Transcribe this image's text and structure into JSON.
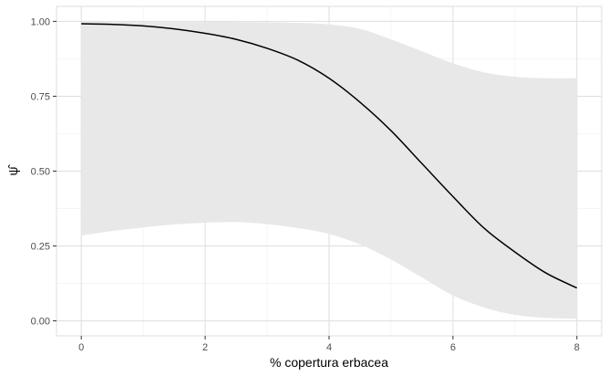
{
  "chart_data": {
    "type": "line",
    "xlabel": "% copertura erbacea",
    "ylabel": "ψ̂",
    "xlim": [
      -0.4,
      8.4
    ],
    "ylim": [
      -0.05,
      1.05
    ],
    "xticks": [
      0,
      2,
      4,
      6,
      8
    ],
    "xtick_labels": [
      "0",
      "2",
      "4",
      "6",
      "8"
    ],
    "yticks": [
      0,
      0.25,
      0.5,
      0.75,
      1.0
    ],
    "ytick_labels": [
      "0.00",
      "0.25",
      "0.50",
      "0.75",
      "1.00"
    ],
    "grid": true,
    "legend": "none",
    "colors": {
      "line": "#000000",
      "ribbon": "#e8e8e8",
      "grid_major": "#dedede",
      "grid_minor": "#efefef",
      "panel_border": "#dedede"
    },
    "series": [
      {
        "x": [
          0,
          0.5,
          1,
          1.5,
          2,
          2.5,
          3,
          3.5,
          4,
          4.5,
          5,
          5.5,
          6,
          6.5,
          7,
          7.5,
          8
        ],
        "y": [
          0.992,
          0.99,
          0.985,
          0.975,
          0.96,
          0.94,
          0.91,
          0.87,
          0.81,
          0.73,
          0.635,
          0.525,
          0.415,
          0.31,
          0.23,
          0.16,
          0.11
        ],
        "lower": [
          0.285,
          0.3,
          0.312,
          0.322,
          0.328,
          0.33,
          0.323,
          0.31,
          0.29,
          0.255,
          0.205,
          0.145,
          0.085,
          0.045,
          0.02,
          0.01,
          0.007
        ],
        "upper": [
          0.998,
          0.998,
          0.998,
          0.998,
          0.998,
          0.998,
          0.997,
          0.995,
          0.99,
          0.975,
          0.94,
          0.9,
          0.86,
          0.83,
          0.815,
          0.81,
          0.81
        ]
      }
    ]
  }
}
